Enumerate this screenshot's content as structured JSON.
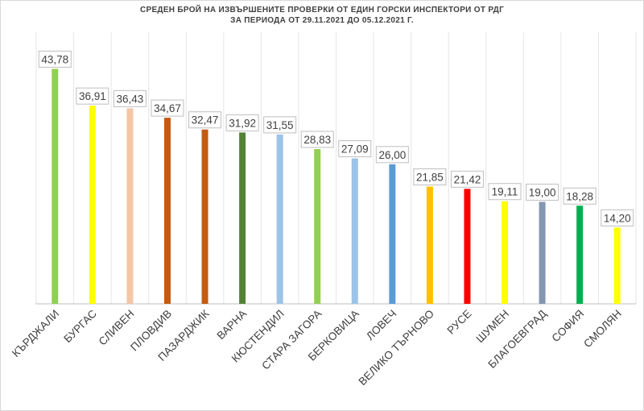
{
  "chart_data": {
    "type": "bar",
    "title": "СРЕДЕН БРОЙ НА ИЗВЪРШЕНИТЕ ПРОВЕРКИ ОТ ЕДИН ГОРСКИ ИНСПЕКТОРИ ОТ РДГ",
    "subtitle": "ЗА ПЕРИОДА ОТ 29.11.2021 ДО 05.12.2021 Г.",
    "categories": [
      "КЪРДЖАЛИ",
      "БУРГАС",
      "СЛИВЕН",
      "ПЛОВДИВ",
      "ПАЗАРДЖИК",
      "ВАРНА",
      "КЮСТЕНДИЛ",
      "СТАРА ЗАГОРА",
      "БЕРКОВИЦА",
      "ЛОВЕЧ",
      "ВЕЛИКО ТЪРНОВО",
      "РУСЕ",
      "ШУМЕН",
      "БЛАГОЕВГРАД",
      "СОФИЯ",
      "СМОЛЯН"
    ],
    "values": [
      43.78,
      36.91,
      36.43,
      34.67,
      32.47,
      31.92,
      31.55,
      28.83,
      27.09,
      26.0,
      21.85,
      21.42,
      19.11,
      19.0,
      18.28,
      14.2
    ],
    "value_labels": [
      "43,78",
      "36,91",
      "36,43",
      "34,67",
      "32,47",
      "31,92",
      "31,55",
      "28,83",
      "27,09",
      "26,00",
      "21,85",
      "21,42",
      "19,11",
      "19,00",
      "18,28",
      "14,20"
    ],
    "colors": [
      "#92d050",
      "#ffff00",
      "#f4c7a6",
      "#c55a11",
      "#c55a11",
      "#548235",
      "#9dc3e6",
      "#92d050",
      "#9dc3e6",
      "#5b9bd5",
      "#ffc000",
      "#ff0000",
      "#ffff00",
      "#8497b0",
      "#00b050",
      "#ffff00"
    ],
    "xlabel": "",
    "ylabel": "",
    "ylim": [
      0,
      50
    ],
    "grid": "vertical",
    "legend": "none"
  }
}
